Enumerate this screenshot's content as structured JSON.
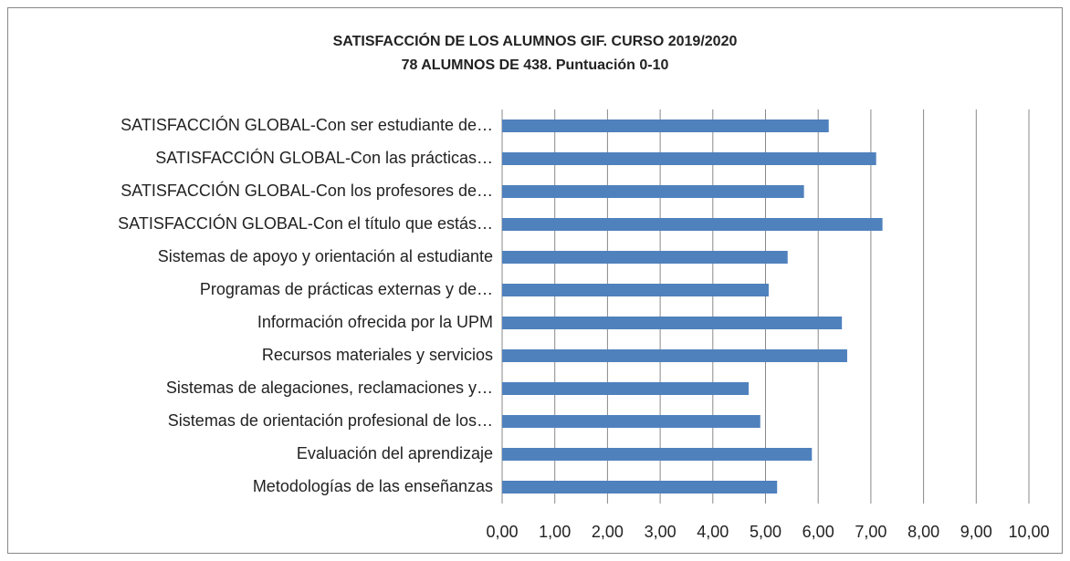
{
  "chart_data": {
    "type": "bar",
    "orientation": "horizontal",
    "title": "SATISFACCIÓN DE LOS ALUMNOS GIF. CURSO 2019/2020",
    "subtitle": "78 ALUMNOS DE 438. Puntuación 0-10",
    "categories": [
      "SATISFACCIÓN GLOBAL-Con ser estudiante de…",
      "SATISFACCIÓN GLOBAL-Con las prácticas…",
      "SATISFACCIÓN GLOBAL-Con los profesores de…",
      "SATISFACCIÓN GLOBAL-Con el título que estás…",
      "Sistemas de apoyo y orientación al estudiante",
      "Programas de prácticas externas y de…",
      "Información ofrecida por la UPM",
      "Recursos materiales y servicios",
      "Sistemas de alegaciones, reclamaciones y…",
      "Sistemas de orientación profesional de los…",
      "Evaluación del aprendizaje",
      "Metodologías de las enseñanzas"
    ],
    "values": [
      6.2,
      7.1,
      5.73,
      7.22,
      5.42,
      5.06,
      6.45,
      6.55,
      4.68,
      4.9,
      5.88,
      5.22
    ],
    "color": "#4f81bd",
    "xlim": [
      0,
      10
    ],
    "xticks": [
      {
        "value": 0,
        "label": "0,00"
      },
      {
        "value": 1,
        "label": "1,00"
      },
      {
        "value": 2,
        "label": "2,00"
      },
      {
        "value": 3,
        "label": "3,00"
      },
      {
        "value": 4,
        "label": "4,00"
      },
      {
        "value": 5,
        "label": "5,00"
      },
      {
        "value": 6,
        "label": "6,00"
      },
      {
        "value": 7,
        "label": "7,00"
      },
      {
        "value": 8,
        "label": "8,00"
      },
      {
        "value": 9,
        "label": "9,00"
      },
      {
        "value": 10,
        "label": "10,00"
      }
    ],
    "grid": true
  }
}
